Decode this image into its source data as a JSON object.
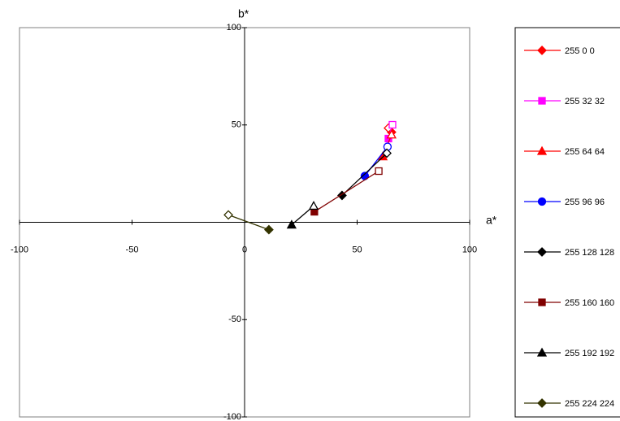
{
  "chart_data": {
    "type": "scatter-line",
    "x_label": "a*",
    "y_label": "b*",
    "xlim": [
      -100,
      100
    ],
    "ylim": [
      -100,
      100
    ],
    "xticks": [
      -100,
      -50,
      0,
      50,
      100
    ],
    "yticks": [
      -100,
      -50,
      50,
      100
    ],
    "grid": false,
    "legend": "right",
    "series": [
      {
        "name": "255 0 0",
        "color": "#ff0000",
        "marker": "diamond",
        "x": [
          65.3,
          63.9
        ],
        "y": [
          46.3,
          48.4
        ]
      },
      {
        "name": "255 32 32",
        "color": "#ff00ff",
        "marker": "square",
        "x": [
          63.9,
          65.7
        ],
        "y": [
          43,
          50.1
        ]
      },
      {
        "name": "255 64 64",
        "color": "#ff0000",
        "marker": "triangle",
        "x": [
          61.4,
          65.3
        ],
        "y": [
          33.8,
          45
        ]
      },
      {
        "name": "255 96 96",
        "color": "#0000ff",
        "marker": "circle",
        "x": [
          53.4,
          63.5
        ],
        "y": [
          23.8,
          38.8
        ]
      },
      {
        "name": "255 128 128",
        "color": "#000000",
        "marker": "diamond",
        "x": [
          43.3,
          63.2
        ],
        "y": [
          13.8,
          35.5
        ]
      },
      {
        "name": "255 160 160",
        "color": "#800000",
        "marker": "square",
        "x": [
          31,
          59.6
        ],
        "y": [
          5.4,
          26.3
        ]
      },
      {
        "name": "255 192 192",
        "color": "#000000",
        "marker": "triangle",
        "x": [
          20.9,
          30.7
        ],
        "y": [
          -1.3,
          8.4
        ]
      },
      {
        "name": "255 224 224",
        "color": "#333300",
        "marker": "diamond",
        "x": [
          10.8,
          -7.2
        ],
        "y": [
          -3.8,
          3.8
        ]
      }
    ]
  }
}
